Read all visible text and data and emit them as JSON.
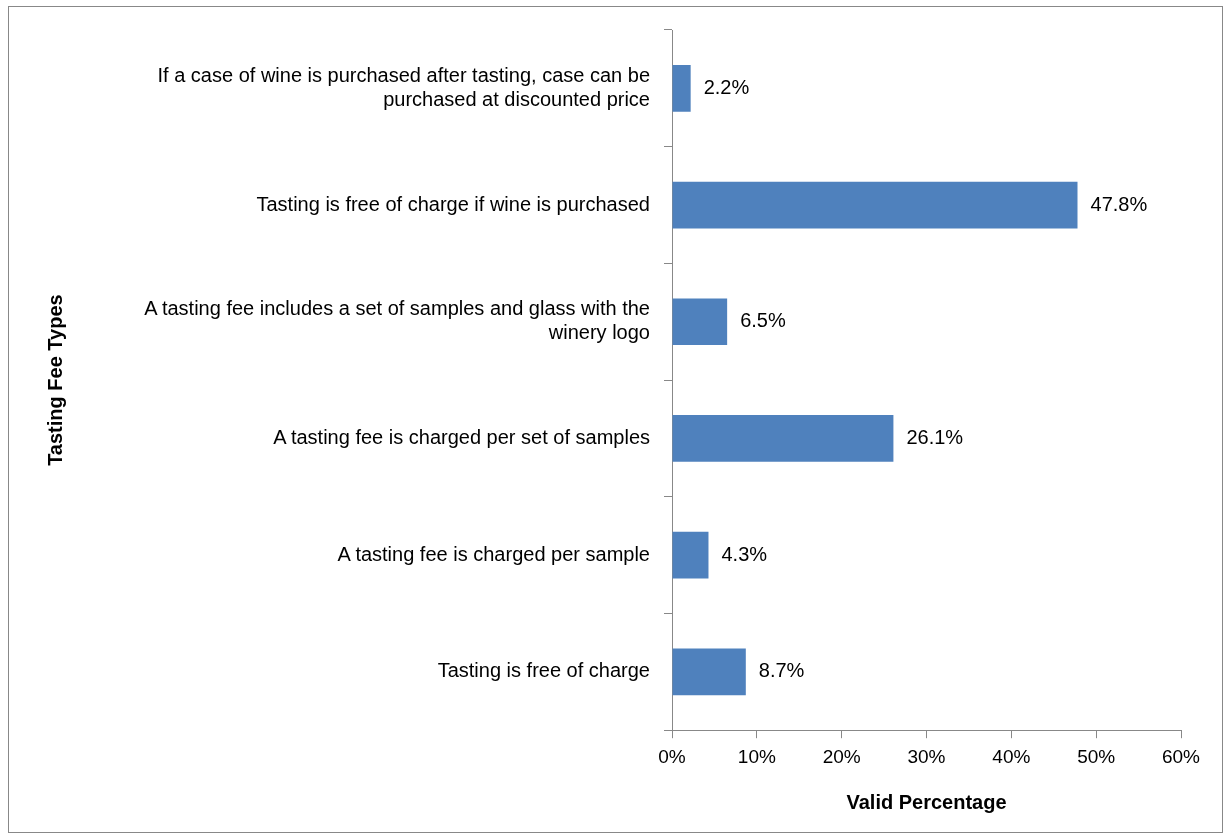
{
  "chart_data": {
    "type": "bar",
    "orientation": "horizontal",
    "xlabel": "Valid Percentage",
    "ylabel": "Tasting Fee Types",
    "categories": [
      "If a case of wine is purchased after tasting, case can be purchased at discounted price",
      "Tasting is free of charge if wine is purchased",
      "A tasting fee includes a set of samples and glass with the winery logo",
      "A tasting fee is charged per set of samples",
      "A tasting fee is charged per sample",
      "Tasting is free of charge"
    ],
    "values": [
      2.2,
      47.8,
      6.5,
      26.1,
      4.3,
      8.7
    ],
    "value_labels": [
      "2.2%",
      "47.8%",
      "6.5%",
      "26.1%",
      "4.3%",
      "8.7%"
    ],
    "color": "#4f81bd",
    "xlim": [
      0,
      60
    ],
    "xticks": [
      {
        "value": 0,
        "label": "0%"
      },
      {
        "value": 10,
        "label": "10%"
      },
      {
        "value": 20,
        "label": "20%"
      },
      {
        "value": 30,
        "label": "30%"
      },
      {
        "value": 40,
        "label": "40%"
      },
      {
        "value": 50,
        "label": "50%"
      },
      {
        "value": 60,
        "label": "60%"
      }
    ]
  }
}
